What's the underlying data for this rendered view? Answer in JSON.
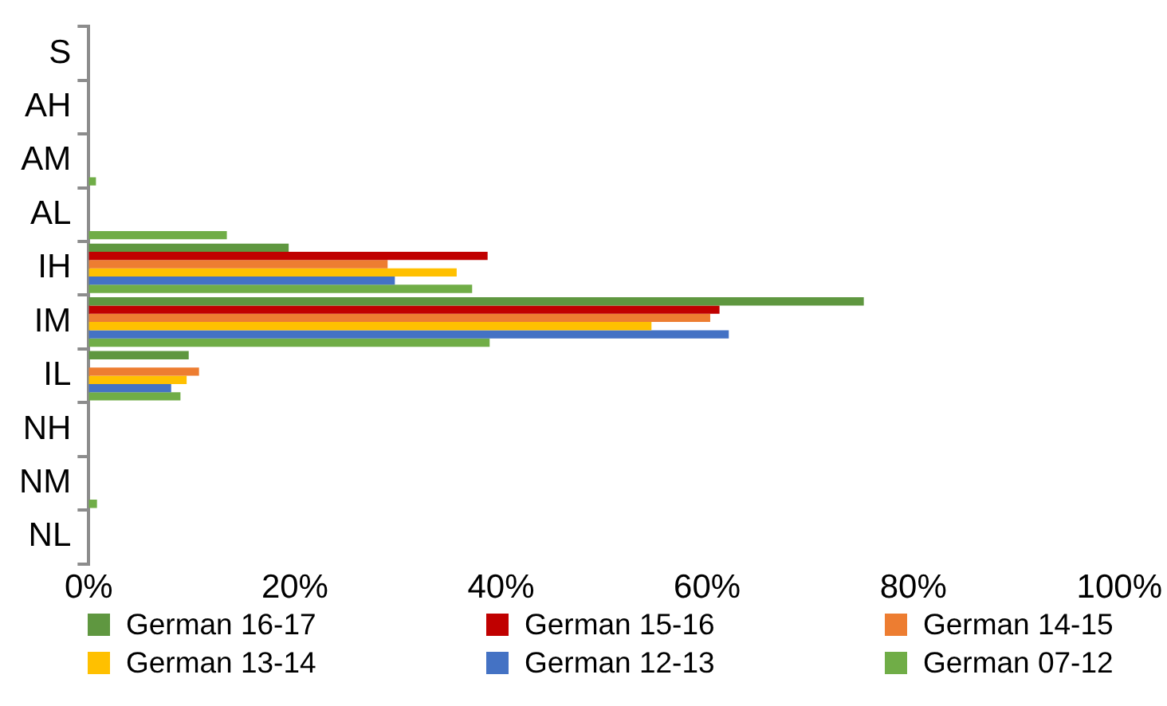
{
  "chart_data": {
    "type": "bar",
    "orientation": "horizontal",
    "categories": [
      "S",
      "AH",
      "AM",
      "AL",
      "IH",
      "IM",
      "IL",
      "NH",
      "NM",
      "NL"
    ],
    "series": [
      {
        "name": "German 16-17",
        "color": "#5f9740",
        "values": [
          0,
          0,
          0,
          0,
          19.4,
          75.2,
          9.7,
          0,
          0,
          0
        ]
      },
      {
        "name": "German 15-16",
        "color": "#c00000",
        "values": [
          0,
          0,
          0,
          0,
          38.7,
          61.2,
          0,
          0,
          0,
          0
        ]
      },
      {
        "name": "German 14-15",
        "color": "#ed7d31",
        "values": [
          0,
          0,
          0,
          0,
          29.0,
          60.3,
          10.7,
          0,
          0,
          0
        ]
      },
      {
        "name": "German 13-14",
        "color": "#ffc000",
        "values": [
          0,
          0,
          0,
          0,
          35.7,
          54.6,
          9.5,
          0,
          0,
          0
        ]
      },
      {
        "name": "German 12-13",
        "color": "#4472c4",
        "values": [
          0,
          0,
          0,
          0,
          29.7,
          62.1,
          8.0,
          0,
          0,
          0
        ]
      },
      {
        "name": "German 07-12",
        "color": "#70ad47",
        "values": [
          0,
          0,
          0.7,
          13.4,
          37.2,
          38.9,
          8.9,
          0,
          0.8,
          0
        ]
      }
    ],
    "xlim": [
      0,
      100
    ],
    "xticks": [
      {
        "value": 0,
        "label": "0%"
      },
      {
        "value": 20,
        "label": "20%"
      },
      {
        "value": 40,
        "label": "40%"
      },
      {
        "value": 60,
        "label": "60%"
      },
      {
        "value": 80,
        "label": "80%"
      },
      {
        "value": 100,
        "label": "100%"
      }
    ],
    "grid": false,
    "legend": "bottom"
  }
}
